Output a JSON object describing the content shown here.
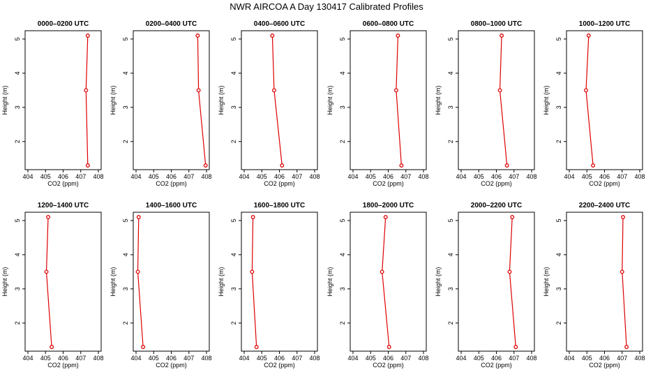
{
  "title": "NWR AIRCOA A  Day 130417  Calibrated Profiles",
  "colors": {
    "line": "#dd0000",
    "marker": "#dd0000",
    "axis": "#000000"
  },
  "chart_data": [
    {
      "type": "line",
      "title": "0000–0200 UTC",
      "xlabel": "CO2 (ppm)",
      "ylabel": "Height (m)",
      "xlim": [
        404,
        408
      ],
      "ylim": [
        1.3,
        5.1
      ],
      "xticks": [
        404,
        405,
        406,
        407,
        408
      ],
      "yticks": [
        2,
        3,
        4,
        5
      ],
      "x": [
        407.4,
        407.3,
        407.4
      ],
      "y": [
        5.1,
        3.5,
        1.3
      ]
    },
    {
      "type": "line",
      "title": "0200–0400 UTC",
      "xlabel": "CO2 (ppm)",
      "ylabel": "Height (m)",
      "xlim": [
        404,
        408
      ],
      "ylim": [
        1.3,
        5.1
      ],
      "xticks": [
        404,
        405,
        406,
        407,
        408
      ],
      "yticks": [
        2,
        3,
        4,
        5
      ],
      "x": [
        407.5,
        407.55,
        407.95
      ],
      "y": [
        5.1,
        3.5,
        1.3
      ]
    },
    {
      "type": "line",
      "title": "0400–0600 UTC",
      "xlabel": "CO2 (ppm)",
      "ylabel": "Height (m)",
      "xlim": [
        404,
        408
      ],
      "ylim": [
        1.3,
        5.1
      ],
      "xticks": [
        404,
        405,
        406,
        407,
        408
      ],
      "yticks": [
        2,
        3,
        4,
        5
      ],
      "x": [
        405.6,
        405.7,
        406.15
      ],
      "y": [
        5.1,
        3.5,
        1.3
      ]
    },
    {
      "type": "line",
      "title": "0600–0800 UTC",
      "xlabel": "CO2 (ppm)",
      "ylabel": "Height (m)",
      "xlim": [
        404,
        408
      ],
      "ylim": [
        1.3,
        5.1
      ],
      "xticks": [
        404,
        405,
        406,
        407,
        408
      ],
      "yticks": [
        2,
        3,
        4,
        5
      ],
      "x": [
        406.55,
        406.45,
        406.75
      ],
      "y": [
        5.1,
        3.5,
        1.3
      ]
    },
    {
      "type": "line",
      "title": "0800–1000 UTC",
      "xlabel": "CO2 (ppm)",
      "ylabel": "Height (m)",
      "xlim": [
        404,
        408
      ],
      "ylim": [
        1.3,
        5.1
      ],
      "xticks": [
        404,
        405,
        406,
        407,
        408
      ],
      "yticks": [
        2,
        3,
        4,
        5
      ],
      "x": [
        406.3,
        406.2,
        406.6
      ],
      "y": [
        5.1,
        3.5,
        1.3
      ]
    },
    {
      "type": "line",
      "title": "1000–1200 UTC",
      "xlabel": "CO2 (ppm)",
      "ylabel": "Height (m)",
      "xlim": [
        404,
        408
      ],
      "ylim": [
        1.3,
        5.1
      ],
      "xticks": [
        404,
        405,
        406,
        407,
        408
      ],
      "yticks": [
        2,
        3,
        4,
        5
      ],
      "x": [
        405.1,
        404.95,
        405.35
      ],
      "y": [
        5.1,
        3.5,
        1.3
      ]
    },
    {
      "type": "line",
      "title": "1200–1400 UTC",
      "xlabel": "CO2 (ppm)",
      "ylabel": "Height (m)",
      "xlim": [
        404,
        408
      ],
      "ylim": [
        1.3,
        5.1
      ],
      "xticks": [
        404,
        405,
        406,
        407,
        408
      ],
      "yticks": [
        2,
        3,
        4,
        5
      ],
      "x": [
        405.15,
        405.05,
        405.35
      ],
      "y": [
        5.1,
        3.5,
        1.3
      ]
    },
    {
      "type": "line",
      "title": "1400–1600 UTC",
      "xlabel": "CO2 (ppm)",
      "ylabel": "Height (m)",
      "xlim": [
        404,
        408
      ],
      "ylim": [
        1.3,
        5.1
      ],
      "xticks": [
        404,
        405,
        406,
        407,
        408
      ],
      "yticks": [
        2,
        3,
        4,
        5
      ],
      "x": [
        404.15,
        404.1,
        404.4
      ],
      "y": [
        5.1,
        3.5,
        1.3
      ]
    },
    {
      "type": "line",
      "title": "1600–1800 UTC",
      "xlabel": "CO2 (ppm)",
      "ylabel": "Height (m)",
      "xlim": [
        404,
        408
      ],
      "ylim": [
        1.3,
        5.1
      ],
      "xticks": [
        404,
        405,
        406,
        407,
        408
      ],
      "yticks": [
        2,
        3,
        4,
        5
      ],
      "x": [
        404.5,
        404.45,
        404.7
      ],
      "y": [
        5.1,
        3.5,
        1.3
      ]
    },
    {
      "type": "line",
      "title": "1800–2000 UTC",
      "xlabel": "CO2 (ppm)",
      "ylabel": "Height (m)",
      "xlim": [
        404,
        408
      ],
      "ylim": [
        1.3,
        5.1
      ],
      "xticks": [
        404,
        405,
        406,
        407,
        408
      ],
      "yticks": [
        2,
        3,
        4,
        5
      ],
      "x": [
        405.85,
        405.65,
        406.05
      ],
      "y": [
        5.1,
        3.5,
        1.3
      ]
    },
    {
      "type": "line",
      "title": "2000–2200 UTC",
      "xlabel": "CO2 (ppm)",
      "ylabel": "Height (m)",
      "xlim": [
        404,
        408
      ],
      "ylim": [
        1.3,
        5.1
      ],
      "xticks": [
        404,
        405,
        406,
        407,
        408
      ],
      "yticks": [
        2,
        3,
        4,
        5
      ],
      "x": [
        406.9,
        406.75,
        407.1
      ],
      "y": [
        5.1,
        3.5,
        1.3
      ]
    },
    {
      "type": "line",
      "title": "2200–2400 UTC",
      "xlabel": "CO2 (ppm)",
      "ylabel": "Height (m)",
      "xlim": [
        404,
        408
      ],
      "ylim": [
        1.3,
        5.1
      ],
      "xticks": [
        404,
        405,
        406,
        407,
        408
      ],
      "yticks": [
        2,
        3,
        4,
        5
      ],
      "x": [
        407.05,
        407.0,
        407.25
      ],
      "y": [
        5.1,
        3.5,
        1.3
      ]
    }
  ]
}
